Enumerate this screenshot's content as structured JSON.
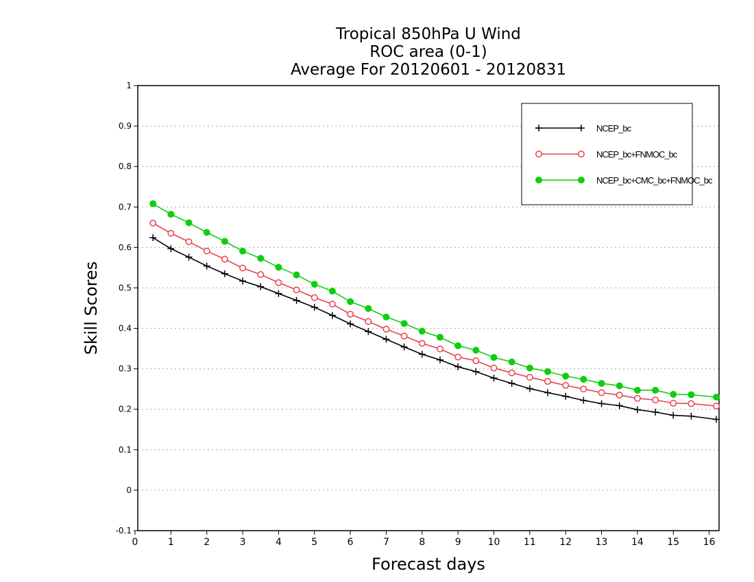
{
  "chart_data": {
    "type": "line",
    "title": [
      "Tropical 850hPa U Wind",
      "ROC area (0-1)",
      "Average For 20120601 - 20120831"
    ],
    "xlabel": "Forecast days",
    "ylabel": "Skill Scores",
    "xlim": [
      0,
      16.2
    ],
    "ylim": [
      -0.1,
      1
    ],
    "xticks": [
      "0",
      "1",
      "2",
      "3",
      "4",
      "5",
      "6",
      "7",
      "8",
      "9",
      "10",
      "11",
      "12",
      "13",
      "14",
      "15",
      "16"
    ],
    "yticks": [
      "-0.1",
      "0",
      "0.1",
      "0.2",
      "0.3",
      "0.4",
      "0.5",
      "0.6",
      "0.7",
      "0.8",
      "0.9",
      "1"
    ],
    "grid": "horizontal dotted",
    "legend_position": "top-right",
    "x": [
      0.5,
      1,
      1.5,
      2,
      2.5,
      3,
      3.5,
      4,
      4.5,
      5,
      5.5,
      6,
      6.5,
      7,
      7.5,
      8,
      8.5,
      9,
      9.5,
      10,
      10.5,
      11,
      11.5,
      12,
      12.5,
      13,
      13.5,
      14,
      14.5,
      15,
      15.5,
      16.2
    ],
    "series": [
      {
        "name": "NCEP_bc",
        "color": "#000000",
        "marker": "plus",
        "values": [
          0.624,
          0.597,
          0.576,
          0.554,
          0.535,
          0.517,
          0.503,
          0.486,
          0.469,
          0.452,
          0.432,
          0.411,
          0.392,
          0.373,
          0.354,
          0.336,
          0.322,
          0.305,
          0.293,
          0.277,
          0.264,
          0.251,
          0.241,
          0.232,
          0.222,
          0.214,
          0.209,
          0.199,
          0.193,
          0.185,
          0.183,
          0.175
        ]
      },
      {
        "name": "NCEP_bc+FNMOC_bc",
        "color": "#e8404a",
        "marker": "open-circle",
        "values": [
          0.66,
          0.635,
          0.614,
          0.591,
          0.571,
          0.549,
          0.533,
          0.513,
          0.495,
          0.476,
          0.46,
          0.435,
          0.417,
          0.398,
          0.381,
          0.363,
          0.349,
          0.329,
          0.32,
          0.302,
          0.29,
          0.279,
          0.269,
          0.259,
          0.25,
          0.241,
          0.235,
          0.227,
          0.223,
          0.215,
          0.214,
          0.208
        ]
      },
      {
        "name": "NCEP_bc+CMC_bc+FNMOC_bc",
        "color": "#11cc11",
        "marker": "filled-circle",
        "values": [
          0.708,
          0.682,
          0.661,
          0.637,
          0.615,
          0.591,
          0.573,
          0.551,
          0.532,
          0.509,
          0.492,
          0.466,
          0.449,
          0.428,
          0.412,
          0.393,
          0.378,
          0.357,
          0.346,
          0.328,
          0.317,
          0.302,
          0.293,
          0.282,
          0.274,
          0.264,
          0.258,
          0.247,
          0.247,
          0.237,
          0.236,
          0.23
        ]
      }
    ]
  }
}
